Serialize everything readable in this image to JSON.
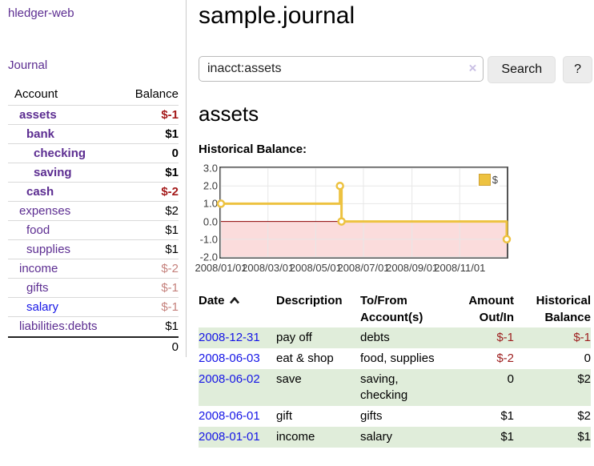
{
  "sidebar": {
    "brand": "hledger-web",
    "nav_journal": "Journal",
    "accounts": {
      "header_account": "Account",
      "header_balance": "Balance",
      "rows": [
        {
          "name": "assets",
          "balance": "$-1",
          "depth": 1,
          "bold": true,
          "neg": "strong"
        },
        {
          "name": "bank",
          "balance": "$1",
          "depth": 2,
          "bold": true,
          "neg": "none"
        },
        {
          "name": "checking",
          "balance": "0",
          "depth": 3,
          "bold": true,
          "neg": "none"
        },
        {
          "name": "saving",
          "balance": "$1",
          "depth": 3,
          "bold": true,
          "neg": "none"
        },
        {
          "name": "cash",
          "balance": "$-2",
          "depth": 2,
          "bold": true,
          "neg": "strong"
        },
        {
          "name": "expenses",
          "balance": "$2",
          "depth": 1,
          "bold": false,
          "neg": "none"
        },
        {
          "name": "food",
          "balance": "$1",
          "depth": 2,
          "bold": false,
          "neg": "none"
        },
        {
          "name": "supplies",
          "balance": "$1",
          "depth": 2,
          "bold": false,
          "neg": "none"
        },
        {
          "name": "income",
          "balance": "$-2",
          "depth": 1,
          "bold": false,
          "neg": "dim"
        },
        {
          "name": "gifts",
          "balance": "$-1",
          "depth": 2,
          "bold": false,
          "neg": "dim"
        },
        {
          "name": "salary",
          "balance": "$-1",
          "depth": 2,
          "bold": false,
          "neg": "dim",
          "link_color": "blue"
        },
        {
          "name": "liabilities:debts",
          "balance": "$1",
          "depth": 1,
          "bold": false,
          "neg": "none"
        }
      ],
      "total": "0"
    }
  },
  "main": {
    "title": "sample.journal",
    "search": {
      "value": "inacct:assets",
      "clear_icon": "×",
      "button_label": "Search",
      "help_label": "?"
    },
    "account_heading": "assets",
    "chart_label": "Historical Balance:"
  },
  "chart_data": {
    "type": "line",
    "title": "Historical Balance",
    "x_range": [
      "2008-01-01",
      "2008-12-31"
    ],
    "ylim": [
      -2,
      3
    ],
    "yticks": [
      {
        "v": 3,
        "label": "3.0"
      },
      {
        "v": 2,
        "label": "2.0"
      },
      {
        "v": 1,
        "label": "1.0"
      },
      {
        "v": 0,
        "label": "0.0"
      },
      {
        "v": -1,
        "label": "-1.0"
      },
      {
        "v": -2,
        "label": "-2.0"
      }
    ],
    "xticks": [
      {
        "date": "2008-01-01",
        "label": "2008/01/01"
      },
      {
        "date": "2008-03-01",
        "label": "2008/03/01"
      },
      {
        "date": "2008-05-01",
        "label": "2008/05/01"
      },
      {
        "date": "2008-07-01",
        "label": "2008/07/01"
      },
      {
        "date": "2008-09-01",
        "label": "2008/09/01"
      },
      {
        "date": "2008-11-01",
        "label": "2008/11/01"
      }
    ],
    "series": [
      {
        "name": "$",
        "color": "#edc240",
        "step": true,
        "points": [
          {
            "x": "2008-01-01",
            "y": 1
          },
          {
            "x": "2008-06-01",
            "y": 2
          },
          {
            "x": "2008-06-03",
            "y": 0
          },
          {
            "x": "2008-12-31",
            "y": -1
          }
        ]
      }
    ],
    "grid": true,
    "grid_color": "#e7e7e7",
    "border_color": "#545454",
    "zero_line_color": "#8b0000",
    "negative_fill": "#fbdcdc",
    "legend_position": "top-right"
  },
  "register": {
    "headers": [
      {
        "line1": "Date",
        "line2": ""
      },
      {
        "line1": "Description",
        "line2": ""
      },
      {
        "line1": "To/From",
        "line2": "Account(s)"
      },
      {
        "line1": "Amount",
        "line2": "Out/In"
      },
      {
        "line1": "Historical",
        "line2": "Balance"
      }
    ],
    "rows": [
      {
        "date": "2008-12-31",
        "description": "pay off",
        "accounts": "debts",
        "amount": "$-1",
        "amount_neg": true,
        "balance": "$-1",
        "balance_neg": true
      },
      {
        "date": "2008-06-03",
        "description": "eat & shop",
        "accounts": "food, supplies",
        "amount": "$-2",
        "amount_neg": true,
        "balance": "0",
        "balance_neg": false
      },
      {
        "date": "2008-06-02",
        "description": "save",
        "accounts": "saving,\nchecking",
        "amount": "0",
        "amount_neg": false,
        "balance": "$2",
        "balance_neg": false
      },
      {
        "date": "2008-06-01",
        "description": "gift",
        "accounts": "gifts",
        "amount": "$1",
        "amount_neg": false,
        "balance": "$2",
        "balance_neg": false
      },
      {
        "date": "2008-01-01",
        "description": "income",
        "accounts": "salary",
        "amount": "$1",
        "amount_neg": false,
        "balance": "$1",
        "balance_neg": false
      }
    ]
  },
  "colors": {
    "link_purple": "#5c2d91",
    "link_blue": "#1515e6",
    "negative_strong": "#a41a1a",
    "negative_dim": "#c5817c",
    "register_negative": "#9e2121",
    "stripe_green": "#e0edda",
    "series_gold": "#edc240",
    "chart_negative_fill": "#fbdcdc",
    "chart_zero_line": "#8b0000"
  }
}
